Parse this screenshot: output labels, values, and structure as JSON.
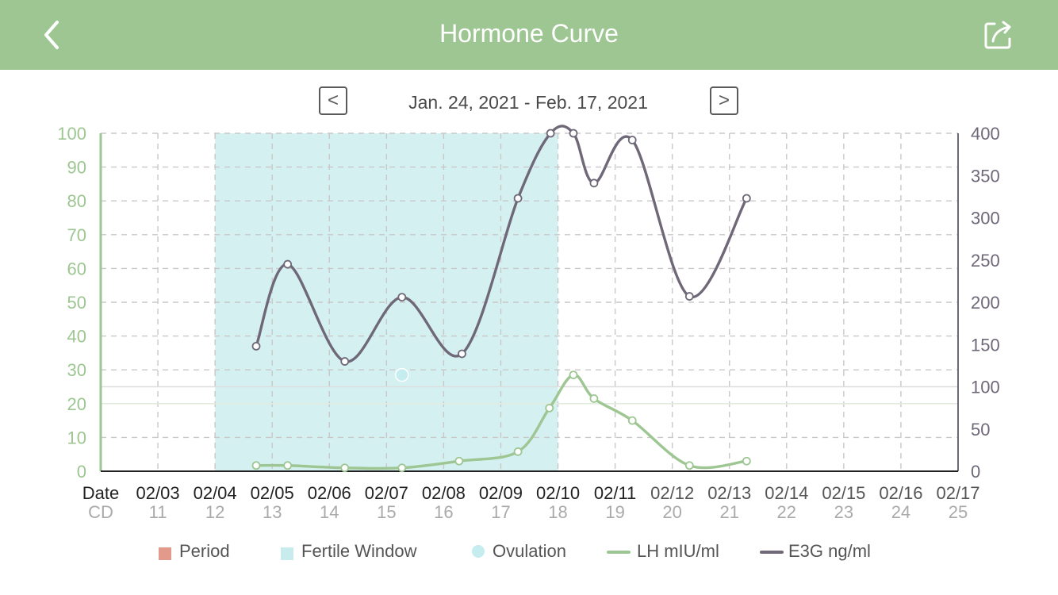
{
  "header": {
    "title": "Hormone Curve",
    "back_icon": "chevron-left-icon",
    "share_icon": "share-icon"
  },
  "range_nav": {
    "prev_label": "<",
    "next_label": ">",
    "date_range": "Jan. 24, 2021 - Feb. 17, 2021"
  },
  "legend": {
    "period": "Period",
    "fertile_window": "Fertile Window",
    "ovulation": "Ovulation",
    "lh": "LH mIU/ml",
    "e3g": "E3G ng/ml"
  },
  "colors": {
    "header": "#9dc692",
    "period": "#e49a8a",
    "fertile": "#d5f0f1",
    "fertile_swatch": "#c8ecee",
    "ovulation": "#c5ecef",
    "lh": "#9dc692",
    "e3g": "#6f6878",
    "left_axis": "#9dc692",
    "right_axis": "#6f6878",
    "grid": "#c8c8c8"
  },
  "chart_data": {
    "type": "line",
    "x_label": "Date",
    "cd_label": "CD",
    "dates": [
      "02/03",
      "02/04",
      "02/05",
      "02/06",
      "02/07",
      "02/08",
      "02/09",
      "02/10",
      "02/11",
      "02/12",
      "02/13",
      "02/14",
      "02/15",
      "02/16",
      "02/17"
    ],
    "cycle_days": [
      "11",
      "12",
      "13",
      "14",
      "15",
      "16",
      "17",
      "18",
      "19",
      "20",
      "21",
      "22",
      "23",
      "24",
      "25"
    ],
    "left_axis": {
      "series": "LH mIU/ml",
      "ylim": [
        0,
        100
      ],
      "ticks": [
        "100",
        "90",
        "80",
        "70",
        "60",
        "50",
        "40",
        "30",
        "20",
        "10",
        "0"
      ]
    },
    "right_axis": {
      "series": "E3G ng/ml",
      "ylim": [
        0,
        400
      ],
      "ticks": [
        "400",
        "350",
        "300",
        "250",
        "200",
        "150",
        "100",
        "50",
        "0"
      ]
    },
    "fertile_window": {
      "start": "02/04",
      "end": "02/10"
    },
    "ovulation": {
      "date": "02/08",
      "lh": 28.5
    },
    "reference_lines": {
      "lh": 20,
      "e3g": 100
    },
    "series": [
      {
        "name": "LH mIU/ml",
        "axis": "left",
        "points": [
          {
            "x": 2.72,
            "y": 1.7
          },
          {
            "x": 3.27,
            "y": 1.7
          },
          {
            "x": 4.27,
            "y": 1.0
          },
          {
            "x": 5.27,
            "y": 1.0
          },
          {
            "x": 6.27,
            "y": 3.0
          },
          {
            "x": 7.3,
            "y": 5.8
          },
          {
            "x": 7.85,
            "y": 18.7
          },
          {
            "x": 8.27,
            "y": 28.5
          },
          {
            "x": 8.63,
            "y": 21.5
          },
          {
            "x": 9.3,
            "y": 15.0
          },
          {
            "x": 10.3,
            "y": 1.7
          },
          {
            "x": 11.3,
            "y": 3.0
          }
        ]
      },
      {
        "name": "E3G ng/ml",
        "axis": "right",
        "points": [
          {
            "x": 2.72,
            "y": 148
          },
          {
            "x": 3.27,
            "y": 245
          },
          {
            "x": 4.27,
            "y": 130
          },
          {
            "x": 5.27,
            "y": 206
          },
          {
            "x": 6.32,
            "y": 139
          },
          {
            "x": 7.3,
            "y": 323
          },
          {
            "x": 7.87,
            "y": 400
          },
          {
            "x": 8.27,
            "y": 400
          },
          {
            "x": 8.63,
            "y": 341
          },
          {
            "x": 9.3,
            "y": 392
          },
          {
            "x": 10.3,
            "y": 207
          },
          {
            "x": 11.3,
            "y": 323
          }
        ]
      }
    ]
  }
}
